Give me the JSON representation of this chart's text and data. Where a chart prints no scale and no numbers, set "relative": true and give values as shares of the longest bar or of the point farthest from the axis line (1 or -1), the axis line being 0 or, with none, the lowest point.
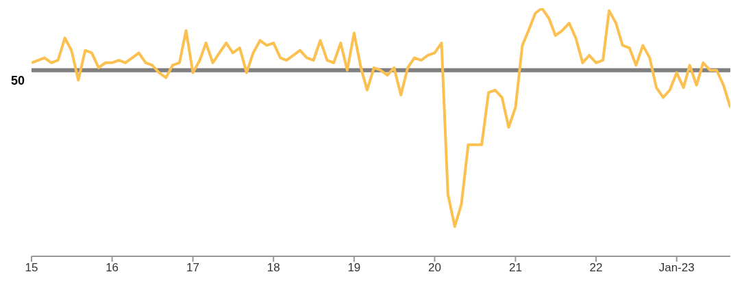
{
  "chart_data": {
    "type": "line",
    "relative": true,
    "x": [
      "2015-01",
      "2015-02",
      "2015-03",
      "2015-04",
      "2015-05",
      "2015-06",
      "2015-07",
      "2015-08",
      "2015-09",
      "2015-10",
      "2015-11",
      "2015-12",
      "2016-01",
      "2016-02",
      "2016-03",
      "2016-04",
      "2016-05",
      "2016-06",
      "2016-07",
      "2016-08",
      "2016-09",
      "2016-10",
      "2016-11",
      "2016-12",
      "2017-01",
      "2017-02",
      "2017-03",
      "2017-04",
      "2017-05",
      "2017-06",
      "2017-07",
      "2017-08",
      "2017-09",
      "2017-10",
      "2017-11",
      "2017-12",
      "2018-01",
      "2018-02",
      "2018-03",
      "2018-04",
      "2018-05",
      "2018-06",
      "2018-07",
      "2018-08",
      "2018-09",
      "2018-10",
      "2018-11",
      "2018-12",
      "2019-01",
      "2019-02",
      "2019-03",
      "2019-04",
      "2019-05",
      "2019-06",
      "2019-07",
      "2019-08",
      "2019-09",
      "2019-10",
      "2019-11",
      "2019-12",
      "2020-01",
      "2020-02",
      "2020-03",
      "2020-04",
      "2020-05",
      "2020-06",
      "2020-07",
      "2020-08",
      "2020-09",
      "2020-10",
      "2020-11",
      "2020-12",
      "2021-01",
      "2021-02",
      "2021-03",
      "2021-04",
      "2021-05",
      "2021-06",
      "2021-07",
      "2021-08",
      "2021-09",
      "2021-10",
      "2021-11",
      "2021-12",
      "2022-01",
      "2022-02",
      "2022-03",
      "2022-04",
      "2022-05",
      "2022-06",
      "2022-07",
      "2022-08",
      "2022-09",
      "2022-10",
      "2022-11",
      "2022-12",
      "2023-01",
      "2023-02",
      "2023-03",
      "2023-04",
      "2023-05",
      "2023-06",
      "2023-07",
      "2023-08",
      "2023-09"
    ],
    "series": [
      {
        "color": "#fbc04f",
        "values": [
          0.78,
          0.79,
          0.8,
          0.78,
          0.79,
          0.88,
          0.83,
          0.71,
          0.83,
          0.82,
          0.76,
          0.78,
          0.78,
          0.79,
          0.78,
          0.8,
          0.82,
          0.78,
          0.77,
          0.74,
          0.72,
          0.77,
          0.78,
          0.91,
          0.74,
          0.79,
          0.86,
          0.78,
          0.82,
          0.86,
          0.82,
          0.84,
          0.74,
          0.82,
          0.87,
          0.85,
          0.86,
          0.8,
          0.79,
          0.81,
          0.83,
          0.8,
          0.79,
          0.87,
          0.79,
          0.78,
          0.86,
          0.75,
          0.9,
          0.76,
          0.67,
          0.76,
          0.75,
          0.73,
          0.76,
          0.65,
          0.76,
          0.8,
          0.79,
          0.81,
          0.82,
          0.86,
          0.25,
          0.12,
          0.21,
          0.45,
          0.45,
          0.45,
          0.66,
          0.67,
          0.64,
          0.52,
          0.6,
          0.85,
          0.91,
          0.98,
          1,
          0.96,
          0.89,
          0.91,
          0.94,
          0.88,
          0.78,
          0.81,
          0.78,
          0.79,
          0.99,
          0.94,
          0.85,
          0.84,
          0.77,
          0.85,
          0.8,
          0.68,
          0.64,
          0.67,
          0.74,
          0.68,
          0.77,
          0.69,
          0.78,
          0.75,
          0.75,
          0.69,
          0.6
        ]
      }
    ],
    "xlim": [
      "2015-01",
      "2023-09"
    ],
    "xticks": [
      {
        "value": "2015-01",
        "label": "15"
      },
      {
        "value": "2016-01",
        "label": "16"
      },
      {
        "value": "2017-01",
        "label": "17"
      },
      {
        "value": "2018-01",
        "label": "18"
      },
      {
        "value": "2019-01",
        "label": "19"
      },
      {
        "value": "2020-01",
        "label": "20"
      },
      {
        "value": "2021-01",
        "label": "21"
      },
      {
        "value": "2022-01",
        "label": "22"
      },
      {
        "value": "2023-01",
        "label": "Jan-23"
      }
    ],
    "ref_lines": [
      {
        "axis": "y",
        "value": 0.75,
        "color": "#808080"
      }
    ],
    "annotations": [
      "50"
    ],
    "grid": false,
    "legend": false,
    "marker": "none",
    "line_style": "solid"
  }
}
